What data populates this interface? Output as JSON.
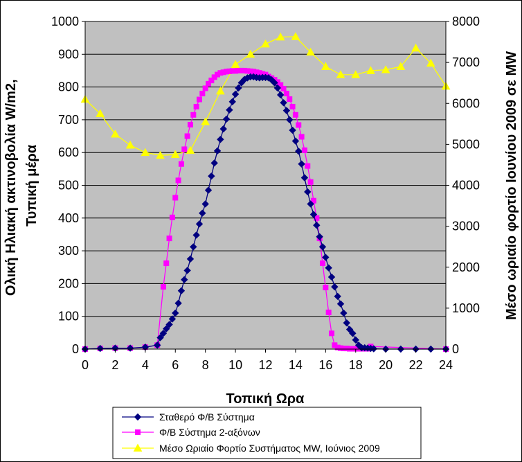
{
  "chart_data": {
    "type": "line",
    "title": "",
    "xlabel": "Τοπική Ωρα",
    "ylabel": [
      "Ολική Ηλιακή ακτινοβολία W/m2,",
      "Τυπική μέρα"
    ],
    "y2label": "Μέσο ωριαίο φορτίο Ιουνίου 2009 σε MW",
    "xlim": [
      0,
      24
    ],
    "ylim": [
      0,
      1000
    ],
    "y2lim": [
      0,
      8000
    ],
    "x_ticks": [
      "0",
      "2",
      "4",
      "6",
      "8",
      "10",
      "12",
      "14",
      "16",
      "18",
      "20",
      "22",
      "24"
    ],
    "y_ticks": [
      "0",
      "100",
      "200",
      "300",
      "400",
      "500",
      "600",
      "700",
      "800",
      "900",
      "1000"
    ],
    "y2_ticks": [
      "0",
      "1000",
      "2000",
      "3000",
      "4000",
      "5000",
      "6000",
      "7000",
      "8000"
    ],
    "grid": true,
    "plot_background": "#c0c0c0",
    "legend_position": "bottom",
    "series": [
      {
        "name": "Σταθερό Φ/Β Σύστημα",
        "axis": "left",
        "color": "#000080",
        "marker": "diamond",
        "x": [
          0,
          1,
          2,
          3,
          4,
          4.8,
          5.0,
          5.2,
          5.4,
          5.6,
          5.8,
          6.0,
          6.2,
          6.4,
          6.6,
          6.8,
          7.0,
          7.2,
          7.4,
          7.6,
          7.8,
          8.0,
          8.2,
          8.4,
          8.6,
          8.8,
          9.0,
          9.2,
          9.4,
          9.6,
          9.8,
          10.0,
          10.2,
          10.4,
          10.6,
          10.8,
          11.0,
          11.2,
          11.4,
          11.6,
          11.8,
          12.0,
          12.2,
          12.4,
          12.6,
          12.8,
          13.0,
          13.2,
          13.4,
          13.6,
          13.8,
          14.0,
          14.2,
          14.4,
          14.6,
          14.8,
          15.0,
          15.2,
          15.4,
          15.6,
          15.8,
          16.0,
          16.2,
          16.4,
          16.6,
          16.8,
          17.0,
          17.2,
          17.4,
          17.6,
          17.8,
          18.0,
          18.2,
          18.4,
          18.6,
          18.8,
          19.0,
          19.2,
          20,
          21,
          22,
          23,
          24
        ],
        "y": [
          0,
          2,
          3,
          3,
          6,
          12,
          35,
          48,
          62,
          75,
          92,
          110,
          140,
          178,
          212,
          240,
          275,
          312,
          348,
          382,
          415,
          443,
          485,
          528,
          568,
          605,
          640,
          672,
          702,
          730,
          755,
          778,
          797,
          813,
          823,
          828,
          831,
          831,
          829,
          828,
          829,
          829,
          828,
          822,
          813,
          797,
          776,
          752,
          728,
          700,
          668,
          635,
          604,
          565,
          523,
          480,
          443,
          411,
          378,
          343,
          312,
          280,
          248,
          220,
          190,
          161,
          138,
          110,
          80,
          60,
          48,
          28,
          12,
          4,
          4,
          3,
          2,
          1,
          0,
          0,
          0,
          0,
          0
        ]
      },
      {
        "name": "Φ/Β Σύστημα 2-αξόνων",
        "axis": "left",
        "color": "#ff00ff",
        "marker": "square",
        "x": [
          0,
          1,
          2,
          3,
          4,
          4.8,
          5.2,
          5.4,
          5.6,
          5.8,
          6.0,
          6.2,
          6.4,
          6.6,
          6.8,
          7.0,
          7.2,
          7.4,
          7.6,
          7.8,
          8.0,
          8.2,
          8.4,
          8.6,
          8.8,
          9.0,
          9.2,
          9.4,
          9.6,
          9.8,
          10.0,
          10.2,
          10.4,
          10.6,
          10.8,
          11.0,
          11.2,
          11.4,
          11.6,
          11.8,
          12.0,
          12.2,
          12.4,
          12.6,
          12.8,
          13.0,
          13.2,
          13.4,
          13.6,
          13.8,
          14.0,
          14.2,
          14.4,
          14.6,
          14.8,
          15.0,
          15.2,
          15.4,
          15.6,
          15.8,
          16.0,
          16.2,
          16.4,
          16.6,
          16.8,
          17.0,
          17.2,
          17.4,
          17.6,
          17.8,
          18.0,
          18.2,
          18.4,
          18.6,
          18.8,
          19.0,
          24
        ],
        "y": [
          0,
          2,
          3,
          3,
          6,
          12,
          190,
          262,
          338,
          402,
          462,
          515,
          565,
          610,
          650,
          685,
          715,
          740,
          762,
          780,
          796,
          810,
          820,
          830,
          838,
          843,
          845,
          847,
          848,
          849,
          849,
          850,
          850,
          850,
          849,
          848,
          847,
          845,
          843,
          840,
          838,
          832,
          827,
          822,
          815,
          806,
          795,
          780,
          763,
          740,
          715,
          684,
          648,
          607,
          559,
          510,
          453,
          400,
          338,
          262,
          188,
          112,
          48,
          12,
          5,
          3,
          2,
          2,
          1,
          1,
          1,
          1,
          1,
          1,
          1,
          8,
          0
        ]
      },
      {
        "name": "Μέσο Ωριαίο Φορτίο Συστήματος MW, Ιούνιος 2009",
        "axis": "right",
        "color": "#ffff00",
        "marker": "triangle",
        "x": [
          0,
          1,
          2,
          3,
          4,
          5,
          6,
          7,
          8,
          9,
          10,
          11,
          12,
          13,
          14,
          15,
          16,
          17,
          18,
          19,
          20,
          21,
          22,
          23,
          24
        ],
        "y": [
          6100,
          5750,
          5250,
          4980,
          4800,
          4730,
          4750,
          4850,
          5550,
          6300,
          6950,
          7200,
          7450,
          7620,
          7630,
          7250,
          6900,
          6700,
          6700,
          6800,
          6820,
          6900,
          7350,
          6980,
          6420
        ]
      }
    ]
  }
}
